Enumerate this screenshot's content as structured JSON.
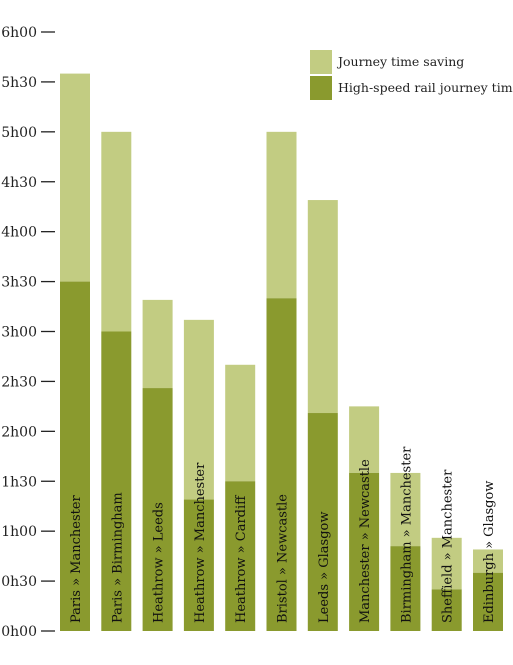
{
  "chart_data": {
    "type": "bar",
    "stacked": true,
    "categories": [
      "Paris » Manchester",
      "Paris » Birmingham",
      "Heathrow » Leeds",
      "Heathrow » Manchester",
      "Heathrow » Cardiff",
      "Bristol » Newcastle",
      "Leeds » Glasgow",
      "Manchester » Newcastle",
      "Birmingham » Manchester",
      "Sheffield » Manchester",
      "Edinburgh » Glasgow"
    ],
    "series": [
      {
        "name": "High-speed rail journey time",
        "color": "#8a9a2e",
        "values": [
          210,
          180,
          146,
          79,
          90,
          200,
          131,
          95,
          51,
          25,
          35
        ]
      },
      {
        "name": "Journey time saving",
        "color": "#c2cc82",
        "values": [
          125,
          120,
          53,
          108,
          70,
          100,
          128,
          40,
          44,
          31,
          14
        ]
      }
    ],
    "y_unit": "minutes",
    "ylim": [
      0,
      360
    ],
    "yticks": [
      {
        "value": 0,
        "label": "0h00"
      },
      {
        "value": 30,
        "label": "0h30"
      },
      {
        "value": 60,
        "label": "1h00"
      },
      {
        "value": 90,
        "label": "1h30"
      },
      {
        "value": 120,
        "label": "2h00"
      },
      {
        "value": 150,
        "label": "2h30"
      },
      {
        "value": 180,
        "label": "3h00"
      },
      {
        "value": 210,
        "label": "3h30"
      },
      {
        "value": 240,
        "label": "4h00"
      },
      {
        "value": 270,
        "label": "4h30"
      },
      {
        "value": 300,
        "label": "5h00"
      },
      {
        "value": 330,
        "label": "5h30"
      },
      {
        "value": 360,
        "label": "6h00"
      }
    ],
    "title": "",
    "xlabel": "",
    "ylabel": "",
    "grid": false,
    "legend_position": "top-right",
    "legend_order": [
      "Journey time saving",
      "High-speed rail journey time"
    ]
  }
}
